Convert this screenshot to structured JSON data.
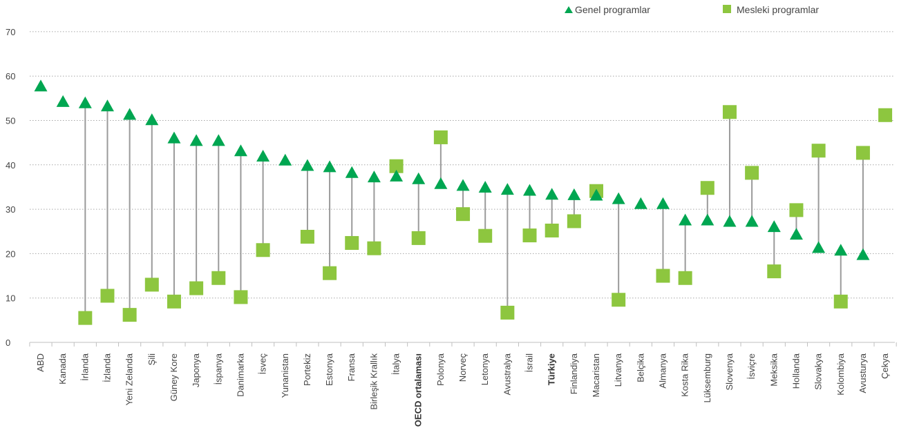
{
  "chart_data": {
    "type": "scatter",
    "title": "",
    "xlabel": "",
    "ylabel": "",
    "ylim": [
      0,
      70
    ],
    "yticks": [
      0,
      10,
      20,
      30,
      40,
      50,
      60,
      70
    ],
    "grid": true,
    "legend_position": "top-right",
    "bold_categories": [
      "OECD ortalaması",
      "Türkiye"
    ],
    "colors": {
      "genel": "#00a651",
      "mesleki": "#8dc63f",
      "connector": "#9a9a9a",
      "grid": "#a6a6a6"
    },
    "categories": [
      "ABD",
      "Kanada",
      "İrlanda",
      "İzlanda",
      "Yeni Zelanda",
      "Şili",
      "Güney Kore",
      "Japonya",
      "İspanya",
      "Danimarka",
      "İsveç",
      "Yunanistan",
      "Portekiz",
      "Estonya",
      "Fransa",
      "Birleşik Krallık",
      "İtalya",
      "OECD ortalaması",
      "Polonya",
      "Norveç",
      "Letonya",
      "Avustralya",
      "İsrail",
      "Türkiye",
      "Finlandiya",
      "Macaristan",
      "Litvanya",
      "Belçika",
      "Almanya",
      "Kosta Rika",
      "Lüksemburg",
      "Slovenya",
      "İsviçre",
      "Meksika",
      "Hollanda",
      "Slovakya",
      "Kolombiya",
      "Avusturya",
      "Çekya"
    ],
    "series": [
      {
        "name": "Genel programlar",
        "marker": "triangle",
        "values": [
          57.8,
          54.3,
          54.0,
          53.3,
          51.4,
          50.2,
          46.1,
          45.5,
          45.5,
          43.2,
          42.0,
          41.1,
          39.9,
          39.6,
          38.3,
          37.3,
          37.5,
          36.9,
          35.8,
          35.4,
          35.0,
          34.5,
          34.3,
          33.4,
          33.3,
          33.2,
          32.4,
          31.3,
          31.3,
          27.6,
          27.6,
          27.3,
          27.3,
          26.1,
          24.4,
          21.4,
          20.8,
          19.8,
          null
        ]
      },
      {
        "name": "Mesleki programlar",
        "marker": "square",
        "values": [
          null,
          null,
          5.5,
          10.5,
          6.2,
          13.0,
          9.2,
          12.2,
          14.5,
          10.2,
          20.8,
          null,
          23.8,
          15.6,
          22.4,
          21.2,
          39.7,
          23.5,
          46.2,
          28.9,
          24.0,
          6.7,
          24.1,
          25.2,
          27.3,
          34.1,
          9.6,
          null,
          15.0,
          14.5,
          34.8,
          51.9,
          38.2,
          16.0,
          29.8,
          43.2,
          9.2,
          42.7,
          51.2
        ]
      }
    ]
  }
}
